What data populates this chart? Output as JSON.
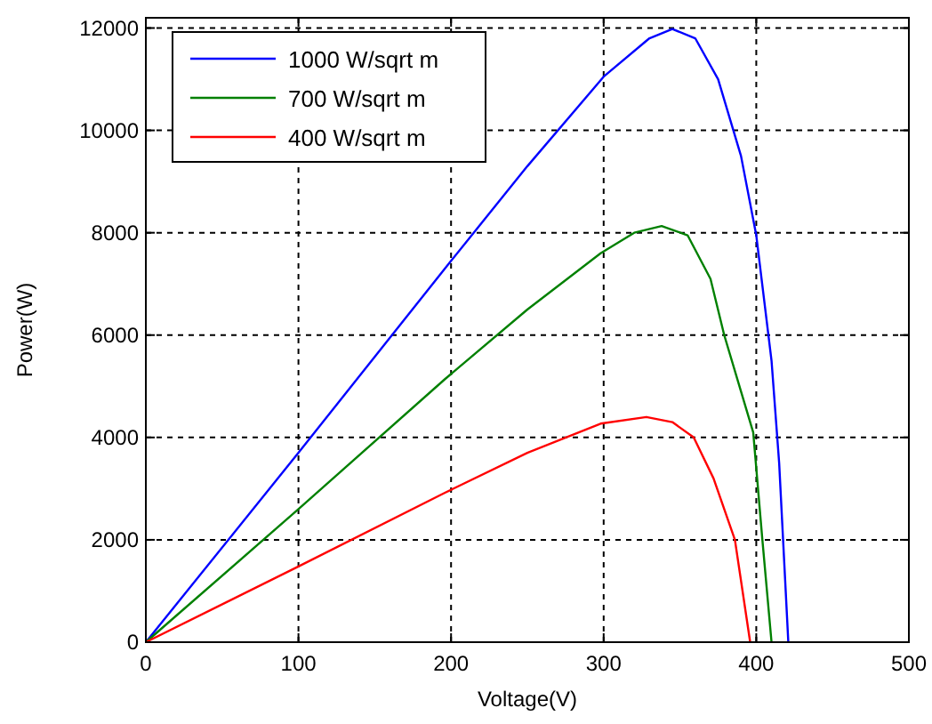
{
  "chart_data": {
    "type": "line",
    "xlabel": "Voltage(V)",
    "ylabel": "Power(W)",
    "xlim": [
      0,
      500
    ],
    "ylim": [
      0,
      12200
    ],
    "xticks": [
      0,
      100,
      200,
      300,
      400,
      500
    ],
    "yticks": [
      0,
      2000,
      4000,
      6000,
      8000,
      10000,
      12000
    ],
    "grid": true,
    "legend": "top left",
    "line_style": "solid",
    "marker": "none",
    "series": [
      {
        "name": "1000 W/sqrt m",
        "color": "#0000ff",
        "x": [
          0,
          100,
          200,
          250,
          300,
          330,
          345,
          360,
          375,
          390,
          400,
          410,
          415,
          421
        ],
        "values": [
          0,
          3700,
          7450,
          9300,
          11050,
          11800,
          11980,
          11800,
          11000,
          9500,
          7950,
          5500,
          3500,
          0
        ]
      },
      {
        "name": "700 W/sqrt m",
        "color": "#008000",
        "x": [
          0,
          100,
          196,
          250,
          298,
          320,
          338,
          355,
          370,
          379,
          390,
          398,
          404,
          410
        ],
        "values": [
          0,
          2600,
          5140,
          6500,
          7600,
          8000,
          8130,
          7950,
          7100,
          6000,
          4900,
          4100,
          2000,
          0
        ]
      },
      {
        "name": "400 W/sqrt m",
        "color": "#ff0000",
        "x": [
          0,
          100,
          196,
          250,
          298,
          328,
          345,
          359,
          372,
          386,
          396
        ],
        "values": [
          0,
          1480,
          2920,
          3700,
          4270,
          4400,
          4300,
          4000,
          3200,
          2000,
          0
        ]
      }
    ]
  }
}
